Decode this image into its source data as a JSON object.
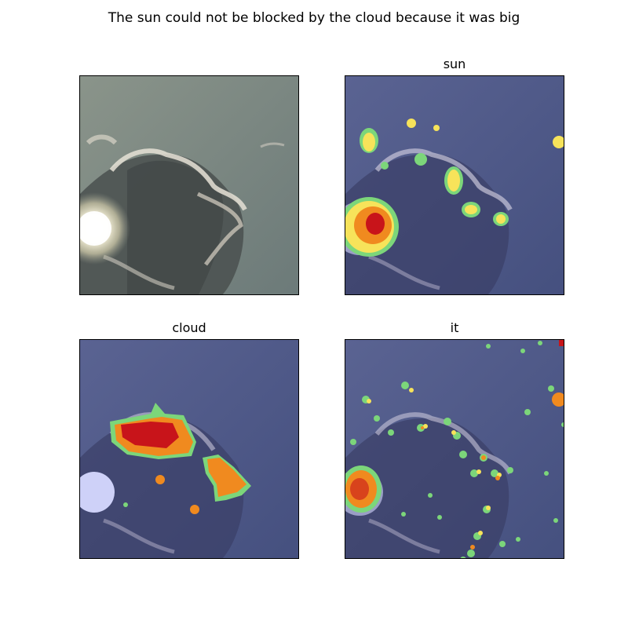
{
  "figure": {
    "suptitle": "The sun could not be blocked by the cloud because it was big"
  },
  "panels": [
    {
      "id": "original",
      "title": "",
      "kind": "photo"
    },
    {
      "id": "sun",
      "title": "sun",
      "kind": "attention-overlay"
    },
    {
      "id": "cloud",
      "title": "cloud",
      "kind": "attention-overlay"
    },
    {
      "id": "it",
      "title": "it",
      "kind": "attention-overlay"
    }
  ],
  "colors": {
    "sky_original": "#7d8880",
    "sky_overlay": "#57608c",
    "heat_low": "#7cd67a",
    "heat_mid": "#f7e35a",
    "heat_high": "#f08a1f",
    "heat_peak": "#c8141a"
  }
}
